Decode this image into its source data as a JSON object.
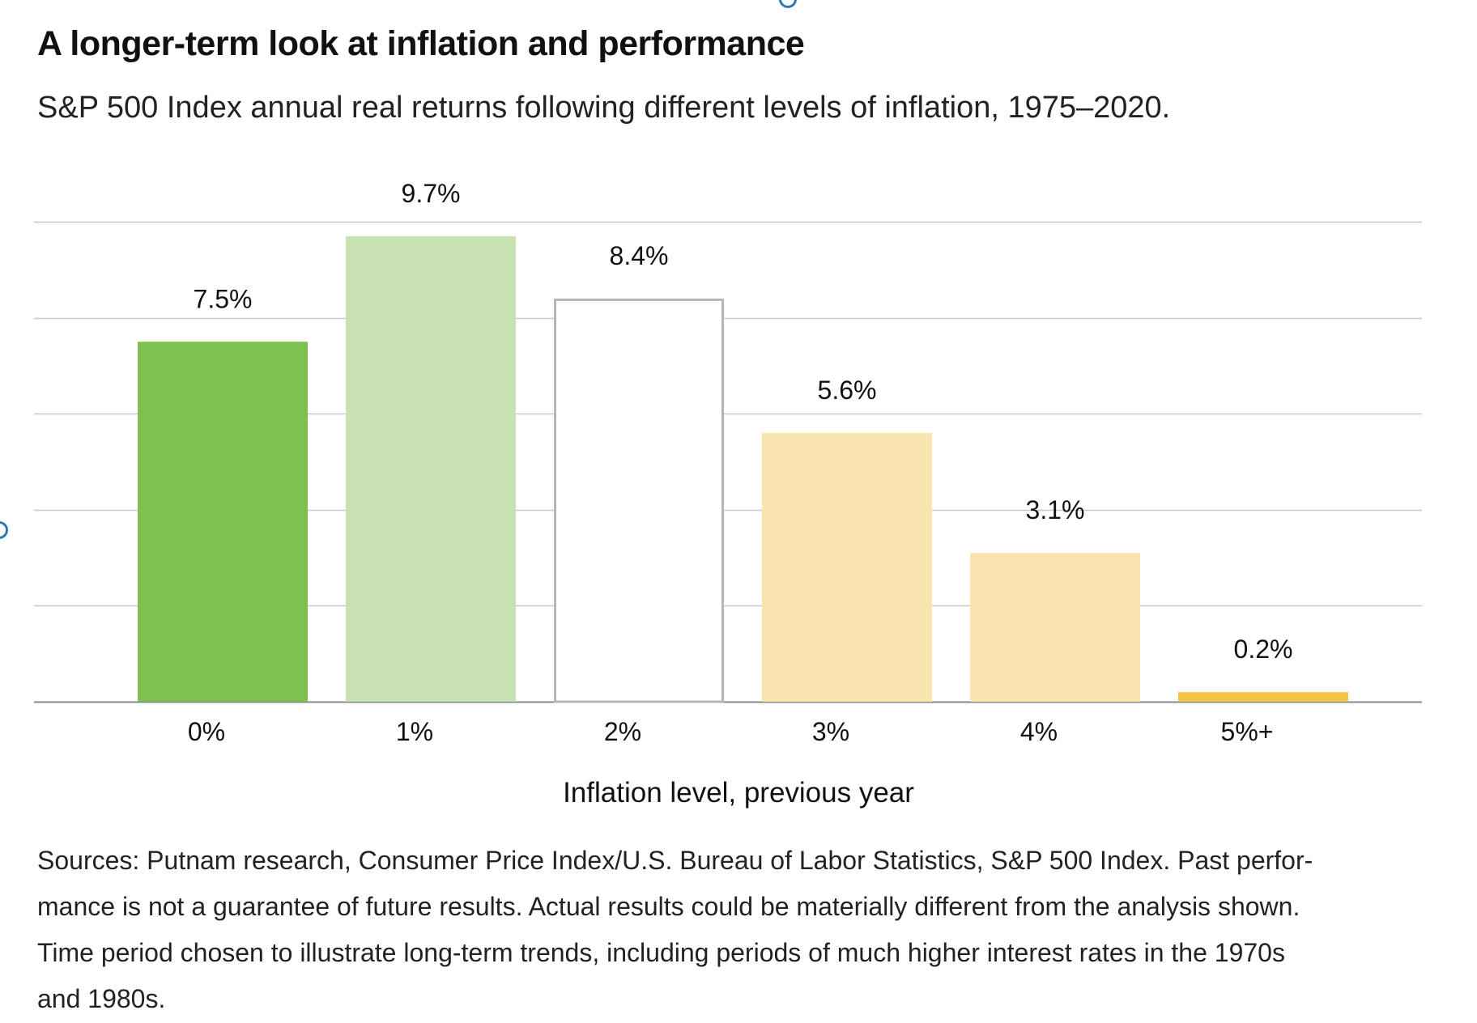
{
  "title": "A longer-term look at inflation and performance",
  "subtitle": "S&P 500 Index annual real returns following different levels of inflation, 1975–2020.",
  "colors": {
    "dark_green": "#7dc04f",
    "light_green": "#c9e2b3",
    "white_fill": "#ffffff",
    "white_stroke": "#b5b5b5",
    "light_yellow": "#fae5b0",
    "gold": "#f5c443",
    "gridline": "#c8c8c8",
    "axis": "#8a8a8a",
    "edge_dot": "#2a7ab8"
  },
  "chart_data": {
    "type": "bar",
    "categories": [
      "0%",
      "1%",
      "2%",
      "3%",
      "4%",
      "5%+"
    ],
    "values": [
      7.5,
      9.7,
      8.4,
      5.6,
      3.1,
      0.2
    ],
    "data_labels": [
      "7.5%",
      "9.7%",
      "8.4%",
      "5.6%",
      "3.1%",
      "0.2%"
    ],
    "bar_colors": [
      "#7dc04f",
      "#c9e2b3",
      "#ffffff",
      "#fae5b0",
      "#fae5b0",
      "#f5c443"
    ],
    "bar_outline": [
      false,
      false,
      true,
      false,
      false,
      false
    ],
    "title": "A longer-term look at inflation and performance",
    "subtitle": "S&P 500 Index annual real returns following different levels of inflation, 1975–2020.",
    "xlabel": "Inflation level, previous year",
    "ylabel": "",
    "ylim": [
      0,
      10
    ],
    "y_gridlines": [
      0,
      2,
      4,
      6,
      8,
      10
    ],
    "grid": true,
    "legend": "none"
  },
  "sources": [
    "Sources: Putnam research, Consumer Price Index/U.S. Bureau of Labor Statistics, S&P 500 Index. Past perfor-",
    "mance is not a guarantee of future results. Actual results could be materially different from the analysis shown.",
    "Time period chosen to illustrate long-term trends, including periods of much higher interest rates in the 1970s",
    "and 1980s."
  ]
}
